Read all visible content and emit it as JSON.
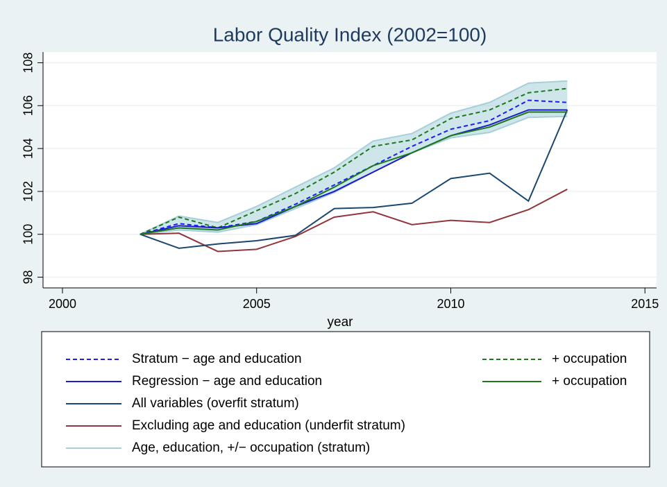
{
  "chart_data": {
    "type": "line",
    "title": "Labor Quality Index (2002=100)",
    "x_label": "year",
    "x": [
      2002,
      2003,
      2004,
      2005,
      2006,
      2007,
      2008,
      2009,
      2010,
      2011,
      2012,
      2013
    ],
    "xlim": [
      1999.5,
      2015.3
    ],
    "xticks": [
      2000,
      2005,
      2010,
      2015
    ],
    "ylim": [
      97.5,
      108.5
    ],
    "yticks": [
      98,
      100,
      102,
      104,
      106,
      108
    ],
    "grid": true,
    "series": [
      {
        "name": "Stratum − age and education",
        "color": "#1a1aff",
        "dashed": true,
        "values": [
          100,
          100.5,
          100.3,
          100.6,
          101.4,
          102.3,
          103.2,
          104.1,
          104.9,
          105.3,
          106.25,
          106.15
        ]
      },
      {
        "name": "+ occupation",
        "color": "#1a7a1a",
        "dashed": true,
        "values": [
          100,
          100.8,
          100.3,
          101.1,
          101.9,
          102.9,
          104.1,
          104.4,
          105.4,
          105.8,
          106.6,
          106.8
        ]
      },
      {
        "name": "Regression − age and education",
        "color": "#1a1acc",
        "dashed": false,
        "values": [
          100,
          100.4,
          100.3,
          100.5,
          101.3,
          102.0,
          102.9,
          103.8,
          104.6,
          105.1,
          105.8,
          105.8
        ]
      },
      {
        "name": "+ occupation",
        "color": "#1a7a1a",
        "dashed": false,
        "values": [
          100,
          100.3,
          100.2,
          100.6,
          101.3,
          102.2,
          103.2,
          103.8,
          104.6,
          105.0,
          105.7,
          105.7
        ]
      },
      {
        "name": "All variables (overfit stratum)",
        "color": "#1a476f",
        "dashed": false,
        "values": [
          100,
          99.35,
          99.55,
          99.7,
          99.95,
          101.2,
          101.25,
          101.45,
          102.6,
          102.85,
          101.55,
          105.8
        ]
      },
      {
        "name": "Excluding age and education (underfit stratum)",
        "color": "#90353b",
        "dashed": false,
        "values": [
          100,
          100.05,
          99.2,
          99.3,
          99.9,
          100.8,
          101.05,
          100.45,
          100.65,
          100.55,
          101.15,
          102.1
        ]
      },
      {
        "name": "Age, education, +/− occupation (stratum)",
        "color": "#a6cfd9",
        "band": true,
        "high": [
          100,
          100.85,
          100.55,
          101.3,
          102.2,
          103.1,
          104.35,
          104.7,
          105.65,
          106.15,
          107.05,
          107.15
        ],
        "low": [
          100,
          100.2,
          100.1,
          100.45,
          101.2,
          101.95,
          102.9,
          103.8,
          104.5,
          104.75,
          105.45,
          105.5
        ]
      }
    ]
  }
}
